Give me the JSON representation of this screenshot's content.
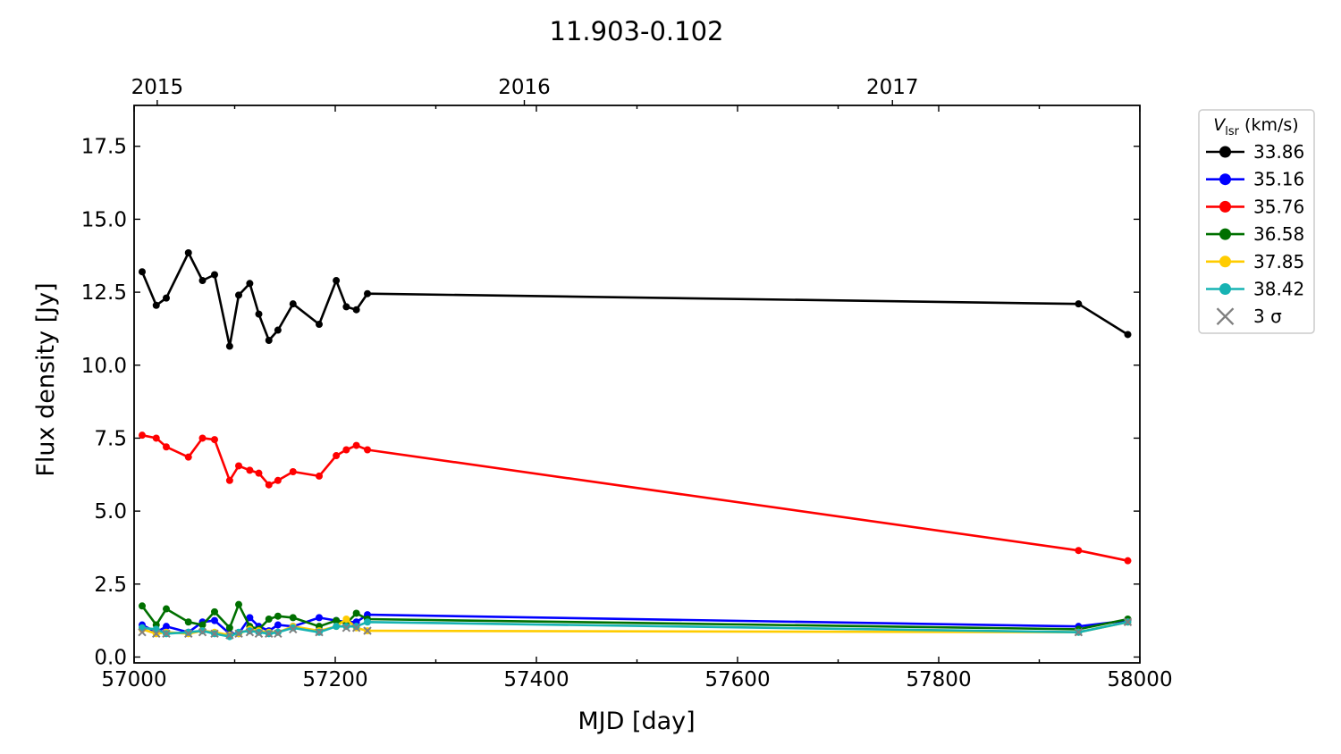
{
  "chart_data": {
    "type": "line",
    "title": "11.903-0.102",
    "xlabel": "MJD [day]",
    "ylabel": "Flux density [Jy]",
    "xlim": [
      57000,
      58000
    ],
    "ylim": [
      -0.2,
      18.9
    ],
    "x_ticks": [
      57000,
      57200,
      57400,
      57600,
      57800,
      58000
    ],
    "y_ticks": [
      0.0,
      2.5,
      5.0,
      7.5,
      10.0,
      12.5,
      15.0,
      17.5
    ],
    "y_tick_labels": [
      "0.0",
      "2.5",
      "5.0",
      "7.5",
      "10.0",
      "12.5",
      "15.0",
      "17.5"
    ],
    "top_axis": {
      "ticks": [
        57023,
        57388,
        57754
      ],
      "labels": [
        "2015",
        "2016",
        "2017"
      ]
    },
    "legend": {
      "position": "outside-right",
      "title_main": "V",
      "title_sub": "lsr",
      "title_unit": " (km/s)",
      "upper_limit_label": "3 σ"
    },
    "x": [
      57008,
      57022,
      57032,
      57054,
      57068,
      57080,
      57095,
      57104,
      57115,
      57124,
      57134,
      57143,
      57158,
      57184,
      57201,
      57211,
      57221,
      57232,
      57939,
      57988
    ],
    "series": [
      {
        "name": "33.86",
        "color": "#000000",
        "values": [
          13.2,
          12.05,
          12.3,
          13.85,
          12.9,
          13.1,
          10.65,
          12.4,
          12.8,
          11.75,
          10.85,
          11.2,
          12.1,
          11.4,
          12.9,
          12.0,
          11.9,
          12.45,
          12.1,
          11.05
        ]
      },
      {
        "name": "35.16",
        "color": "#0000ff",
        "values": [
          1.1,
          0.85,
          1.05,
          0.85,
          1.2,
          1.25,
          0.8,
          0.8,
          1.35,
          1.05,
          0.9,
          1.1,
          1.05,
          1.35,
          1.25,
          1.2,
          1.2,
          1.45,
          1.05,
          1.25
        ]
      },
      {
        "name": "35.76",
        "color": "#ff0000",
        "values": [
          7.6,
          7.5,
          7.2,
          6.85,
          7.5,
          7.45,
          6.05,
          6.55,
          6.4,
          6.3,
          5.9,
          6.05,
          6.35,
          6.2,
          6.9,
          7.1,
          7.25,
          7.1,
          3.65,
          3.3
        ]
      },
      {
        "name": "36.58",
        "color": "#007000",
        "values": [
          1.75,
          1.1,
          1.65,
          1.2,
          1.1,
          1.55,
          1.0,
          1.8,
          1.05,
          0.95,
          1.3,
          1.4,
          1.35,
          1.05,
          1.25,
          1.15,
          1.5,
          1.3,
          0.95,
          1.3
        ]
      },
      {
        "name": "37.85",
        "color": "#ffcc00",
        "values": [
          0.95,
          0.8,
          0.85,
          0.8,
          0.9,
          0.85,
          0.75,
          0.8,
          0.95,
          0.9,
          0.85,
          0.85,
          1.05,
          0.9,
          1.05,
          1.3,
          1.0,
          0.9,
          0.85,
          1.2
        ]
      },
      {
        "name": "38.42",
        "color": "#17b3b3",
        "values": [
          1.0,
          0.95,
          0.8,
          0.85,
          0.9,
          0.8,
          0.7,
          0.85,
          0.9,
          0.85,
          0.8,
          0.85,
          1.0,
          0.85,
          1.05,
          1.05,
          1.05,
          1.2,
          0.85,
          1.2
        ]
      }
    ],
    "upper_limits": {
      "color": "#808080",
      "points": [
        [
          57008,
          0.85
        ],
        [
          57022,
          0.8
        ],
        [
          57032,
          0.8
        ],
        [
          57054,
          0.8
        ],
        [
          57068,
          0.85
        ],
        [
          57080,
          0.8
        ],
        [
          57095,
          0.75
        ],
        [
          57104,
          0.8
        ],
        [
          57115,
          0.85
        ],
        [
          57124,
          0.8
        ],
        [
          57134,
          0.8
        ],
        [
          57143,
          0.8
        ],
        [
          57158,
          0.95
        ],
        [
          57184,
          0.85
        ],
        [
          57211,
          1.0
        ],
        [
          57221,
          1.0
        ],
        [
          57232,
          0.9
        ],
        [
          57939,
          0.85
        ],
        [
          57988,
          1.2
        ]
      ]
    }
  }
}
